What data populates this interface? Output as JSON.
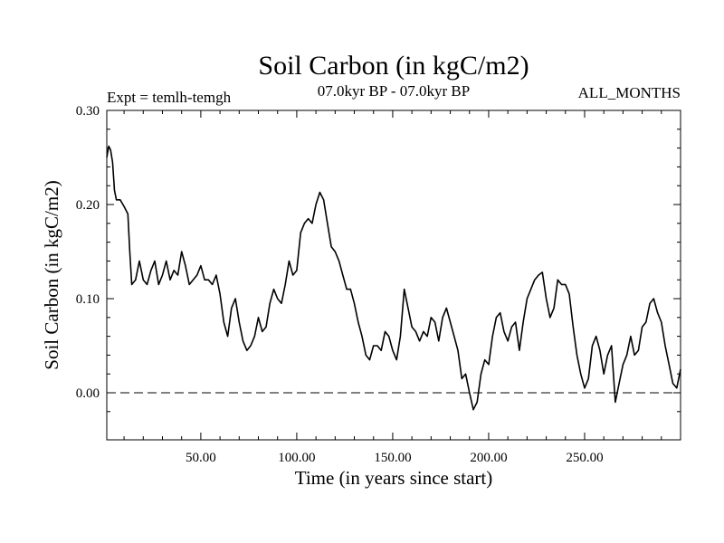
{
  "chart_data": {
    "type": "line",
    "title": "Soil Carbon (in kgC/m2)",
    "subtitle": "07.0kyr BP - 07.0kyr BP",
    "experiment": "Expt = temlh-temgh",
    "season": "ALL_MONTHS",
    "xlabel": "Time (in years since start)",
    "ylabel": "Soil Carbon (in kgC/m2)",
    "xlim": [
      1,
      300
    ],
    "ylim": [
      -0.05,
      0.3
    ],
    "x_ticks": [
      50,
      100,
      150,
      200,
      250
    ],
    "x_tick_labels": [
      "50.00",
      "100.00",
      "150.00",
      "200.00",
      "250.00"
    ],
    "y_ticks": [
      0.0,
      0.1,
      0.2,
      0.3
    ],
    "y_tick_labels": [
      "0.00",
      "0.10",
      "0.20",
      "0.30"
    ],
    "reference_line": {
      "y": 0.0,
      "style": "dashed"
    },
    "series": [
      {
        "name": "Soil Carbon",
        "color": "#000000",
        "points": [
          [
            1,
            0.25
          ],
          [
            2,
            0.262
          ],
          [
            3,
            0.258
          ],
          [
            4,
            0.245
          ],
          [
            5,
            0.215
          ],
          [
            6,
            0.205
          ],
          [
            8,
            0.205
          ],
          [
            10,
            0.198
          ],
          [
            12,
            0.19
          ],
          [
            13,
            0.15
          ],
          [
            14,
            0.115
          ],
          [
            16,
            0.12
          ],
          [
            18,
            0.14
          ],
          [
            20,
            0.12
          ],
          [
            22,
            0.115
          ],
          [
            24,
            0.13
          ],
          [
            26,
            0.14
          ],
          [
            28,
            0.115
          ],
          [
            30,
            0.125
          ],
          [
            32,
            0.14
          ],
          [
            34,
            0.12
          ],
          [
            36,
            0.13
          ],
          [
            38,
            0.125
          ],
          [
            40,
            0.15
          ],
          [
            42,
            0.135
          ],
          [
            44,
            0.115
          ],
          [
            46,
            0.12
          ],
          [
            48,
            0.125
          ],
          [
            50,
            0.135
          ],
          [
            52,
            0.12
          ],
          [
            54,
            0.12
          ],
          [
            56,
            0.115
          ],
          [
            58,
            0.125
          ],
          [
            60,
            0.105
          ],
          [
            62,
            0.075
          ],
          [
            64,
            0.06
          ],
          [
            66,
            0.09
          ],
          [
            68,
            0.1
          ],
          [
            70,
            0.075
          ],
          [
            72,
            0.055
          ],
          [
            74,
            0.045
          ],
          [
            76,
            0.05
          ],
          [
            78,
            0.06
          ],
          [
            80,
            0.08
          ],
          [
            82,
            0.065
          ],
          [
            84,
            0.07
          ],
          [
            86,
            0.095
          ],
          [
            88,
            0.11
          ],
          [
            90,
            0.1
          ],
          [
            92,
            0.095
          ],
          [
            94,
            0.115
          ],
          [
            96,
            0.14
          ],
          [
            98,
            0.125
          ],
          [
            100,
            0.13
          ],
          [
            102,
            0.17
          ],
          [
            104,
            0.18
          ],
          [
            106,
            0.185
          ],
          [
            108,
            0.18
          ],
          [
            110,
            0.2
          ],
          [
            112,
            0.213
          ],
          [
            114,
            0.205
          ],
          [
            116,
            0.18
          ],
          [
            118,
            0.155
          ],
          [
            120,
            0.15
          ],
          [
            122,
            0.14
          ],
          [
            124,
            0.125
          ],
          [
            126,
            0.11
          ],
          [
            128,
            0.11
          ],
          [
            130,
            0.095
          ],
          [
            132,
            0.075
          ],
          [
            134,
            0.06
          ],
          [
            136,
            0.04
          ],
          [
            138,
            0.035
          ],
          [
            140,
            0.05
          ],
          [
            142,
            0.05
          ],
          [
            144,
            0.045
          ],
          [
            146,
            0.065
          ],
          [
            148,
            0.06
          ],
          [
            150,
            0.045
          ],
          [
            152,
            0.035
          ],
          [
            154,
            0.06
          ],
          [
            156,
            0.11
          ],
          [
            158,
            0.09
          ],
          [
            160,
            0.07
          ],
          [
            162,
            0.065
          ],
          [
            164,
            0.055
          ],
          [
            166,
            0.065
          ],
          [
            168,
            0.06
          ],
          [
            170,
            0.08
          ],
          [
            172,
            0.075
          ],
          [
            174,
            0.055
          ],
          [
            176,
            0.08
          ],
          [
            178,
            0.09
          ],
          [
            180,
            0.075
          ],
          [
            182,
            0.06
          ],
          [
            184,
            0.045
          ],
          [
            186,
            0.015
          ],
          [
            188,
            0.02
          ],
          [
            190,
            0.0
          ],
          [
            192,
            -0.018
          ],
          [
            194,
            -0.01
          ],
          [
            196,
            0.02
          ],
          [
            198,
            0.035
          ],
          [
            200,
            0.03
          ],
          [
            202,
            0.06
          ],
          [
            204,
            0.08
          ],
          [
            206,
            0.085
          ],
          [
            208,
            0.065
          ],
          [
            210,
            0.055
          ],
          [
            212,
            0.07
          ],
          [
            214,
            0.075
          ],
          [
            216,
            0.045
          ],
          [
            218,
            0.075
          ],
          [
            220,
            0.1
          ],
          [
            222,
            0.11
          ],
          [
            224,
            0.12
          ],
          [
            226,
            0.125
          ],
          [
            228,
            0.128
          ],
          [
            230,
            0.1
          ],
          [
            232,
            0.08
          ],
          [
            234,
            0.09
          ],
          [
            236,
            0.12
          ],
          [
            238,
            0.115
          ],
          [
            240,
            0.115
          ],
          [
            242,
            0.105
          ],
          [
            244,
            0.07
          ],
          [
            246,
            0.04
          ],
          [
            248,
            0.02
          ],
          [
            250,
            0.005
          ],
          [
            252,
            0.015
          ],
          [
            254,
            0.05
          ],
          [
            256,
            0.06
          ],
          [
            258,
            0.045
          ],
          [
            260,
            0.02
          ],
          [
            262,
            0.04
          ],
          [
            264,
            0.05
          ],
          [
            266,
            -0.01
          ],
          [
            268,
            0.01
          ],
          [
            270,
            0.03
          ],
          [
            272,
            0.04
          ],
          [
            274,
            0.06
          ],
          [
            276,
            0.04
          ],
          [
            278,
            0.045
          ],
          [
            280,
            0.07
          ],
          [
            282,
            0.075
          ],
          [
            284,
            0.095
          ],
          [
            286,
            0.1
          ],
          [
            288,
            0.085
          ],
          [
            290,
            0.075
          ],
          [
            292,
            0.05
          ],
          [
            294,
            0.03
          ],
          [
            296,
            0.01
          ],
          [
            298,
            0.005
          ],
          [
            300,
            0.025
          ]
        ]
      }
    ]
  }
}
